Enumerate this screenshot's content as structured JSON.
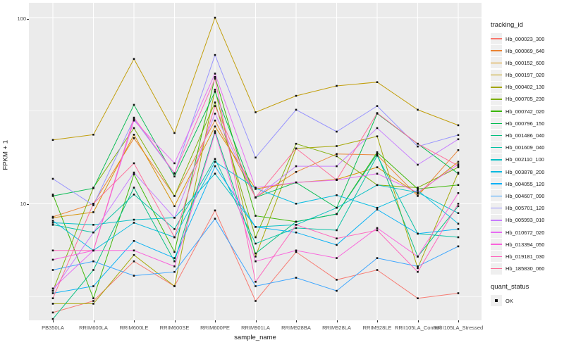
{
  "chart_data": {
    "type": "line",
    "title": "",
    "xlabel": "sample_name",
    "ylabel": "FPKM + 1",
    "y_scale": "log10",
    "ylim": [
      2.36,
      120.2
    ],
    "y_ticks": [
      10,
      100
    ],
    "y_tick_labels": [
      "100",
      "10"
    ],
    "y_minor_gridlines": [
      3.162,
      31.62
    ],
    "grid": true,
    "legend_position": "right",
    "legend_title": "tracking_id",
    "point_legend": {
      "title": "quant_status",
      "label": "OK",
      "marker_color": "#111111"
    },
    "panel_background": "#EBEBEB",
    "gridline_color": "#FFFFFF",
    "x_categories": [
      "PB350LA",
      "RRIM600LA",
      "RRIM600LE",
      "RRIM600SE",
      "RRIM600PE",
      "RRIM901LA",
      "RRIM928BA",
      "RRIM928LA",
      "RRIM928LE",
      "RRII105LA_Control",
      "RRII105LA_Stressed"
    ],
    "series": [
      {
        "name": "Hb_000023_300",
        "color": "#F8766D",
        "values": [
          2.6,
          3.0,
          4.9,
          3.6,
          9.2,
          3.0,
          5.5,
          3.9,
          4.4,
          3.1,
          3.3
        ]
      },
      {
        "name": "Hb_000069_640",
        "color": "#EA8331",
        "values": [
          8.5,
          10.0,
          22.5,
          11.0,
          28.0,
          10.8,
          14.8,
          18.5,
          18.3,
          11.0,
          19.4
        ]
      },
      {
        "name": "Hb_000152_600",
        "color": "#D89000",
        "values": [
          8.4,
          9.0,
          23.5,
          9.7,
          26.0,
          12.0,
          13.0,
          13.5,
          15.7,
          11.3,
          16.8
        ]
      },
      {
        "name": "Hb_000197_020",
        "color": "#C09B00",
        "values": [
          22.0,
          23.5,
          60.0,
          24.0,
          100.0,
          31.0,
          38.0,
          43.0,
          45.0,
          32.0,
          26.4
        ]
      },
      {
        "name": "Hb_000402_130",
        "color": "#A3A500",
        "values": [
          2.9,
          2.9,
          5.3,
          3.6,
          41.0,
          5.2,
          19.8,
          20.4,
          23.0,
          4.5,
          14.7
        ]
      },
      {
        "name": "Hb_000705_230",
        "color": "#7CAE00",
        "values": [
          3.4,
          12.2,
          25.5,
          11.0,
          35.0,
          6.6,
          21.0,
          18.0,
          12.6,
          12.2,
          15.7
        ]
      },
      {
        "name": "Hb_000742_020",
        "color": "#39B600",
        "values": [
          11.2,
          3.1,
          14.4,
          5.5,
          48.0,
          8.6,
          8.0,
          8.8,
          18.9,
          12.0,
          12.6
        ]
      },
      {
        "name": "Hb_000796_150",
        "color": "#00BB4E",
        "values": [
          11.0,
          12.1,
          34.0,
          14.0,
          40.0,
          10.8,
          13.0,
          9.5,
          30.5,
          21.0,
          14.5
        ]
      },
      {
        "name": "Hb_001486_040",
        "color": "#00BF7D",
        "values": [
          2.4,
          4.4,
          12.2,
          4.9,
          24.5,
          5.4,
          8.0,
          8.8,
          18.5,
          5.2,
          9.7
        ]
      },
      {
        "name": "Hb_001609_040",
        "color": "#00C1A3",
        "values": [
          7.7,
          7.0,
          11.2,
          7.3,
          17.4,
          6.1,
          7.4,
          7.2,
          18.1,
          6.9,
          6.6
        ]
      },
      {
        "name": "Hb_002110_100",
        "color": "#00BFC4",
        "values": [
          7.9,
          7.7,
          8.2,
          8.4,
          14.5,
          7.5,
          7.7,
          9.5,
          12.6,
          11.5,
          8.9
        ]
      },
      {
        "name": "Hb_003878_200",
        "color": "#00BAE0",
        "values": [
          8.1,
          5.6,
          7.9,
          6.6,
          16.8,
          12.1,
          10.0,
          11.1,
          9.5,
          11.8,
          7.8
        ]
      },
      {
        "name": "Hb_004055_120",
        "color": "#00B0F6",
        "values": [
          3.3,
          3.6,
          6.3,
          5.1,
          15.9,
          7.5,
          7.0,
          6.0,
          9.3,
          6.9,
          7.3
        ]
      },
      {
        "name": "Hb_004607_090",
        "color": "#35A2FF",
        "values": [
          4.4,
          4.9,
          4.1,
          4.3,
          8.3,
          3.6,
          4.0,
          3.4,
          5.1,
          4.6,
          5.9
        ]
      },
      {
        "name": "Hb_005701_120",
        "color": "#9590FF",
        "values": [
          13.6,
          9.8,
          28.5,
          14.5,
          63.0,
          17.7,
          32.0,
          24.4,
          33.5,
          20.3,
          23.4
        ]
      },
      {
        "name": "Hb_005993_010",
        "color": "#C77CFF",
        "values": [
          3.4,
          7.0,
          14.7,
          8.4,
          30.5,
          10.8,
          15.9,
          15.9,
          25.5,
          16.2,
          22.2
        ]
      },
      {
        "name": "Hb_010672_020",
        "color": "#E76BF3",
        "values": [
          3.5,
          5.6,
          28.0,
          16.5,
          50.0,
          12.2,
          13.0,
          13.4,
          14.5,
          11.5,
          16.3
        ]
      },
      {
        "name": "Hb_013394_050",
        "color": "#FA62DB",
        "values": [
          5.0,
          5.6,
          5.6,
          4.6,
          24.0,
          4.9,
          5.6,
          5.1,
          7.4,
          5.2,
          11.4
        ]
      },
      {
        "name": "Hb_019181_030",
        "color": "#FF62BC",
        "values": [
          5.6,
          5.6,
          29.0,
          14.6,
          47.0,
          3.8,
          7.7,
          6.5,
          7.2,
          4.3,
          10.0
        ]
      },
      {
        "name": "Hb_185830_060",
        "color": "#FF6A98",
        "values": [
          3.1,
          10.0,
          16.5,
          6.6,
          33.5,
          10.8,
          19.8,
          13.4,
          30.7,
          21.0,
          16.0
        ]
      }
    ]
  }
}
